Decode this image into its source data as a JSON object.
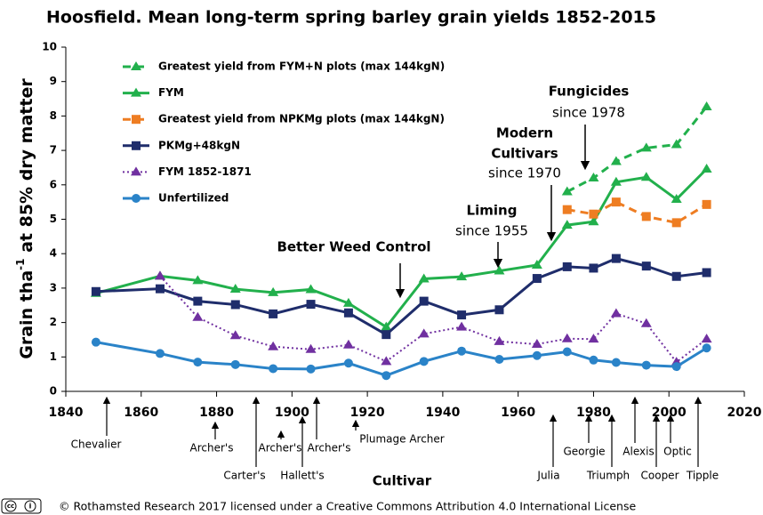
{
  "chart_data": {
    "type": "line",
    "title": "Hoosfield. Mean long-term spring barley grain yields 1852-2015",
    "ylabel": {
      "text": "Grain tha",
      "sup": "-1",
      "rest": " at 85% dry matter"
    },
    "xlabel": "Cultivar",
    "x": [
      1848,
      1865,
      1875,
      1885,
      1895,
      1905,
      1915,
      1925,
      1935,
      1945,
      1955,
      1965,
      1973,
      1980,
      1986,
      1994,
      2002,
      2010
    ],
    "xlim": [
      1840,
      2020
    ],
    "xticks": [
      1840,
      1860,
      1880,
      1900,
      1920,
      1940,
      1960,
      1980,
      2000,
      2020
    ],
    "ylim": [
      0,
      10
    ],
    "yticks": [
      0,
      1,
      2,
      3,
      4,
      5,
      6,
      7,
      8,
      9,
      10
    ],
    "series": [
      {
        "name": "Greatest yield from FYM+N plots (max 144kgN)",
        "color": "#22b04c",
        "marker": "triangle",
        "dash": "dashed",
        "values": [
          null,
          null,
          null,
          null,
          null,
          null,
          null,
          null,
          null,
          null,
          null,
          null,
          5.8,
          6.2,
          6.68,
          7.07,
          7.17,
          8.27
        ]
      },
      {
        "name": "FYM",
        "color": "#22b04c",
        "marker": "triangle",
        "dash": "solid",
        "values": [
          2.85,
          3.35,
          3.22,
          2.97,
          2.87,
          2.96,
          2.56,
          1.87,
          3.27,
          3.33,
          3.5,
          3.67,
          4.83,
          4.93,
          6.08,
          6.22,
          5.58,
          6.46
        ]
      },
      {
        "name": "Greatest yield from NPKMg plots (max 144kgN)",
        "color": "#ee7d22",
        "marker": "square",
        "dash": "dashed",
        "values": [
          null,
          null,
          null,
          null,
          null,
          null,
          null,
          null,
          null,
          null,
          null,
          null,
          5.28,
          5.15,
          5.5,
          5.08,
          4.9,
          5.43
        ]
      },
      {
        "name": "PKMg+48kgN",
        "color": "#1f2d6b",
        "marker": "square",
        "dash": "solid",
        "values": [
          2.9,
          2.98,
          2.62,
          2.52,
          2.25,
          2.53,
          2.28,
          1.65,
          2.62,
          2.22,
          2.37,
          3.28,
          3.62,
          3.58,
          3.86,
          3.64,
          3.34,
          3.45
        ]
      },
      {
        "name": "FYM 1852-1871",
        "color": "#7030a0",
        "marker": "triangle",
        "dash": "dotted",
        "values": [
          null,
          3.35,
          2.15,
          1.62,
          1.3,
          1.22,
          1.35,
          0.87,
          1.67,
          1.87,
          1.45,
          1.37,
          1.53,
          1.52,
          2.26,
          1.97,
          0.85,
          1.52
        ]
      },
      {
        "name": "Unfertilized",
        "color": "#2a83c8",
        "marker": "circle",
        "dash": "solid",
        "values": [
          1.43,
          1.1,
          0.85,
          0.78,
          0.66,
          0.65,
          0.82,
          0.46,
          0.87,
          1.17,
          0.93,
          1.04,
          1.15,
          0.91,
          0.84,
          0.76,
          0.72,
          1.26
        ]
      }
    ],
    "annotations": [
      {
        "lines": [
          "Better Weed Control"
        ]
      },
      {
        "lines": [
          "Liming"
        ],
        "sub": "since 1955"
      },
      {
        "lines": [
          "Modern",
          "Cultivars"
        ],
        "sub": "since 1970"
      },
      {
        "lines": [
          "Fungicides"
        ],
        "sub": "since 1978"
      }
    ],
    "cultivars": [
      "Chevalier",
      "Archer's",
      "Carter's",
      "Archer's",
      "Hallett's",
      "Archer's",
      "Plumage Archer",
      "Julia",
      "Georgie",
      "Triumph",
      "Alexis",
      "Cooper",
      "Optic",
      "Tipple"
    ],
    "footer": "© Rothamsted Research 2017 licensed under a Creative Commons Attribution 4.0 International License"
  }
}
